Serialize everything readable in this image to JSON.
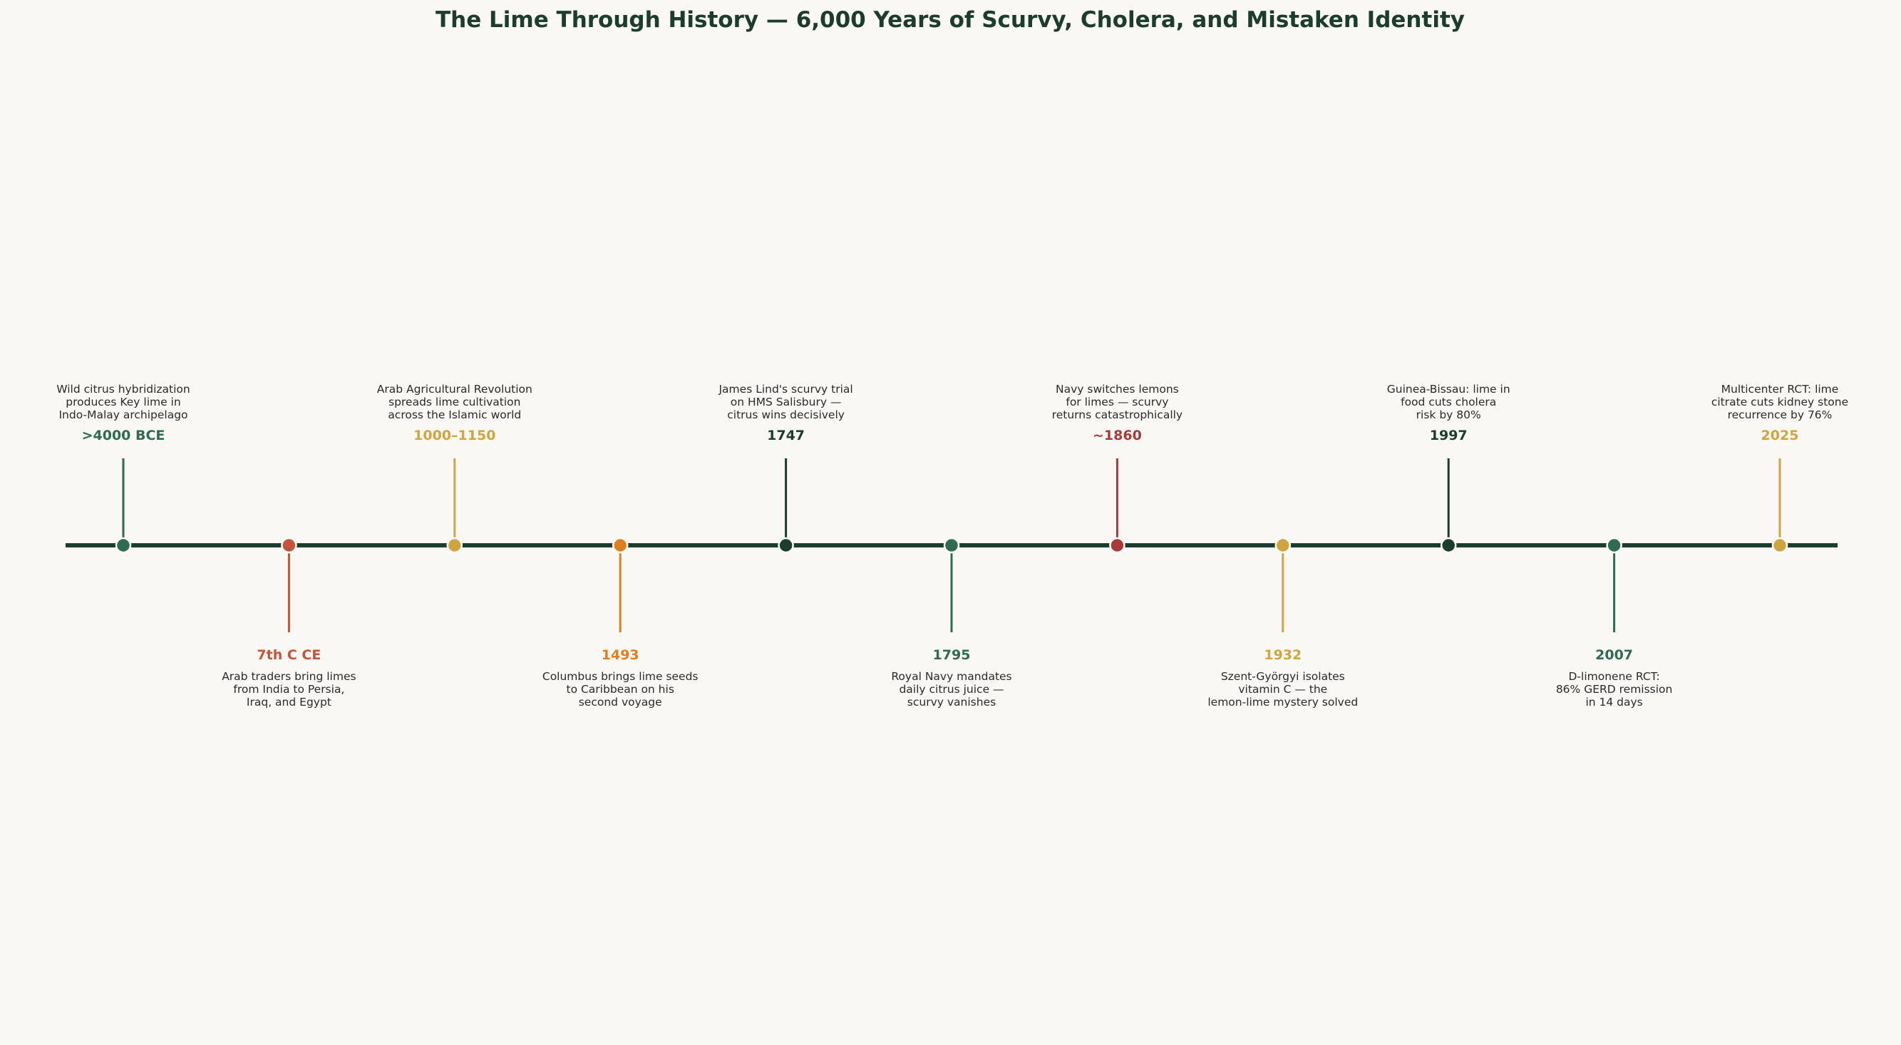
{
  "title": "The Lime Through History — 6,000 Years of Scurvy, Cholera, and Mistaken Identity",
  "colors": {
    "background": "#f9f8f5",
    "axis": "#1c3d2e",
    "title": "#1c3d2e",
    "description_text": "#2a2a2a",
    "marker_border": "#ffffff"
  },
  "events": [
    {
      "date": ">4000 BCE",
      "side": "above",
      "color": "#2e6b50",
      "description": [
        "Wild citrus hybridization",
        "produces Key lime in",
        "Indo-Malay archipelago"
      ]
    },
    {
      "date": "7th C CE",
      "side": "below",
      "color": "#c4553a",
      "description": [
        "Arab traders bring limes",
        "from India to Persia,",
        "Iraq, and Egypt"
      ]
    },
    {
      "date": "1000–1150",
      "side": "above",
      "color": "#d0a540",
      "description": [
        "Arab Agricultural Revolution",
        "spreads lime cultivation",
        "across the Islamic world"
      ]
    },
    {
      "date": "1493",
      "side": "below",
      "color": "#e07f1f",
      "description": [
        "Columbus brings lime seeds",
        "to Caribbean on his",
        "second voyage"
      ]
    },
    {
      "date": "1747",
      "side": "above",
      "color": "#1c3d2e",
      "description": [
        "James Lind's scurvy trial",
        "on HMS Salisbury —",
        "citrus wins decisively"
      ]
    },
    {
      "date": "1795",
      "side": "below",
      "color": "#2e6b50",
      "description": [
        "Royal Navy mandates",
        "daily citrus juice —",
        "scurvy vanishes"
      ]
    },
    {
      "date": "~1860",
      "side": "above",
      "color": "#a83a3a",
      "description": [
        "Navy switches lemons",
        "for limes — scurvy",
        "returns catastrophically"
      ]
    },
    {
      "date": "1932",
      "side": "below",
      "color": "#d0a540",
      "description": [
        "Szent-Györgyi isolates",
        "vitamin C — the",
        "lemon-lime mystery solved"
      ]
    },
    {
      "date": "1997",
      "side": "above",
      "color": "#1c3d2e",
      "description": [
        "Guinea-Bissau: lime in",
        "food cuts cholera",
        "risk by 80%"
      ]
    },
    {
      "date": "2007",
      "side": "below",
      "color": "#2e6b50",
      "description": [
        "D-limonene RCT:",
        "86% GERD remission",
        "in 14 days"
      ]
    },
    {
      "date": "2025",
      "side": "above",
      "color": "#d0a540",
      "description": [
        "Multicenter RCT: lime",
        "citrate cuts kidney stone",
        "recurrence by 76%"
      ]
    }
  ]
}
